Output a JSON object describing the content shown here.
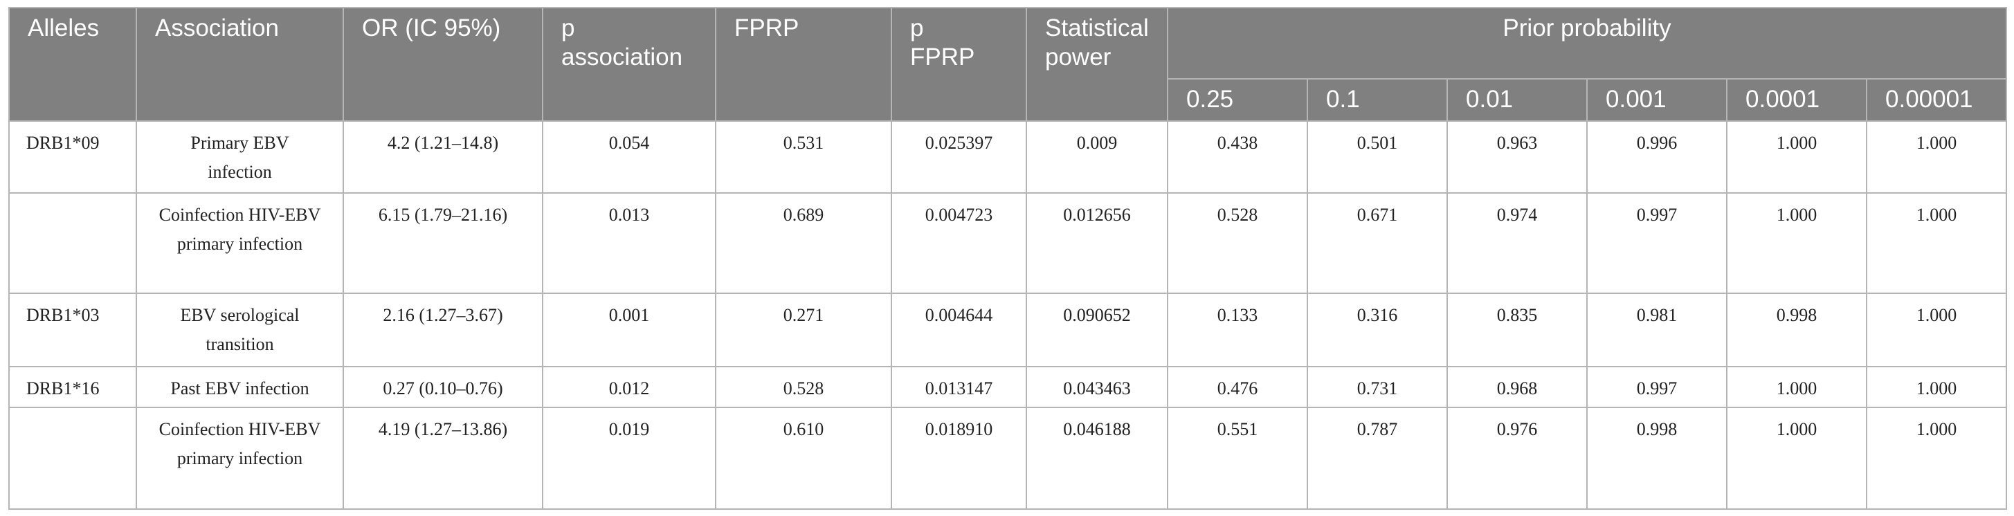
{
  "header": {
    "columns": [
      "Alleles",
      "Association",
      "OR (IC 95%)",
      "p association",
      "FPRP",
      "p FPRP",
      "Statistical power"
    ],
    "prior_probability": "Prior probability",
    "priors": [
      "0.25",
      "0.1",
      "0.01",
      "0.001",
      "0.0001",
      "0.00001"
    ]
  },
  "table": {
    "rows": [
      [
        "DRB1*09",
        "Primary EBV infection",
        "4.2 (1.21–14.8)",
        "0.054",
        "0.531",
        "0.025397",
        "0.009",
        "0.438",
        "0.501",
        "0.963",
        "0.996",
        "1.000",
        "1.000"
      ],
      [
        null,
        "Coinfection HIV-EBV primary infection",
        "6.15 (1.79–21.16)",
        "0.013",
        "0.689",
        "0.004723",
        "0.012656",
        "0.528",
        "0.671",
        "0.974",
        "0.997",
        "1.000",
        "1.000"
      ],
      [
        "DRB1*03",
        "EBV serological transition",
        "2.16 (1.27–3.67)",
        "0.001",
        "0.271",
        "0.004644",
        "0.090652",
        "0.133",
        "0.316",
        "0.835",
        "0.981",
        "0.998",
        "1.000"
      ],
      [
        "DRB1*16",
        "Past EBV infection",
        "0.27 (0.10–0.76)",
        "0.012",
        "0.528",
        "0.013147",
        "0.043463",
        "0.476",
        "0.731",
        "0.968",
        "0.997",
        "1.000",
        "1.000"
      ],
      [
        null,
        "Coinfection HIV-EBV primary infection",
        "4.19 (1.27–13.86)",
        "0.019",
        "0.610",
        "0.018910",
        "0.046188",
        "0.551",
        "0.787",
        "0.976",
        "0.998",
        "1.000",
        "1.000"
      ]
    ]
  }
}
